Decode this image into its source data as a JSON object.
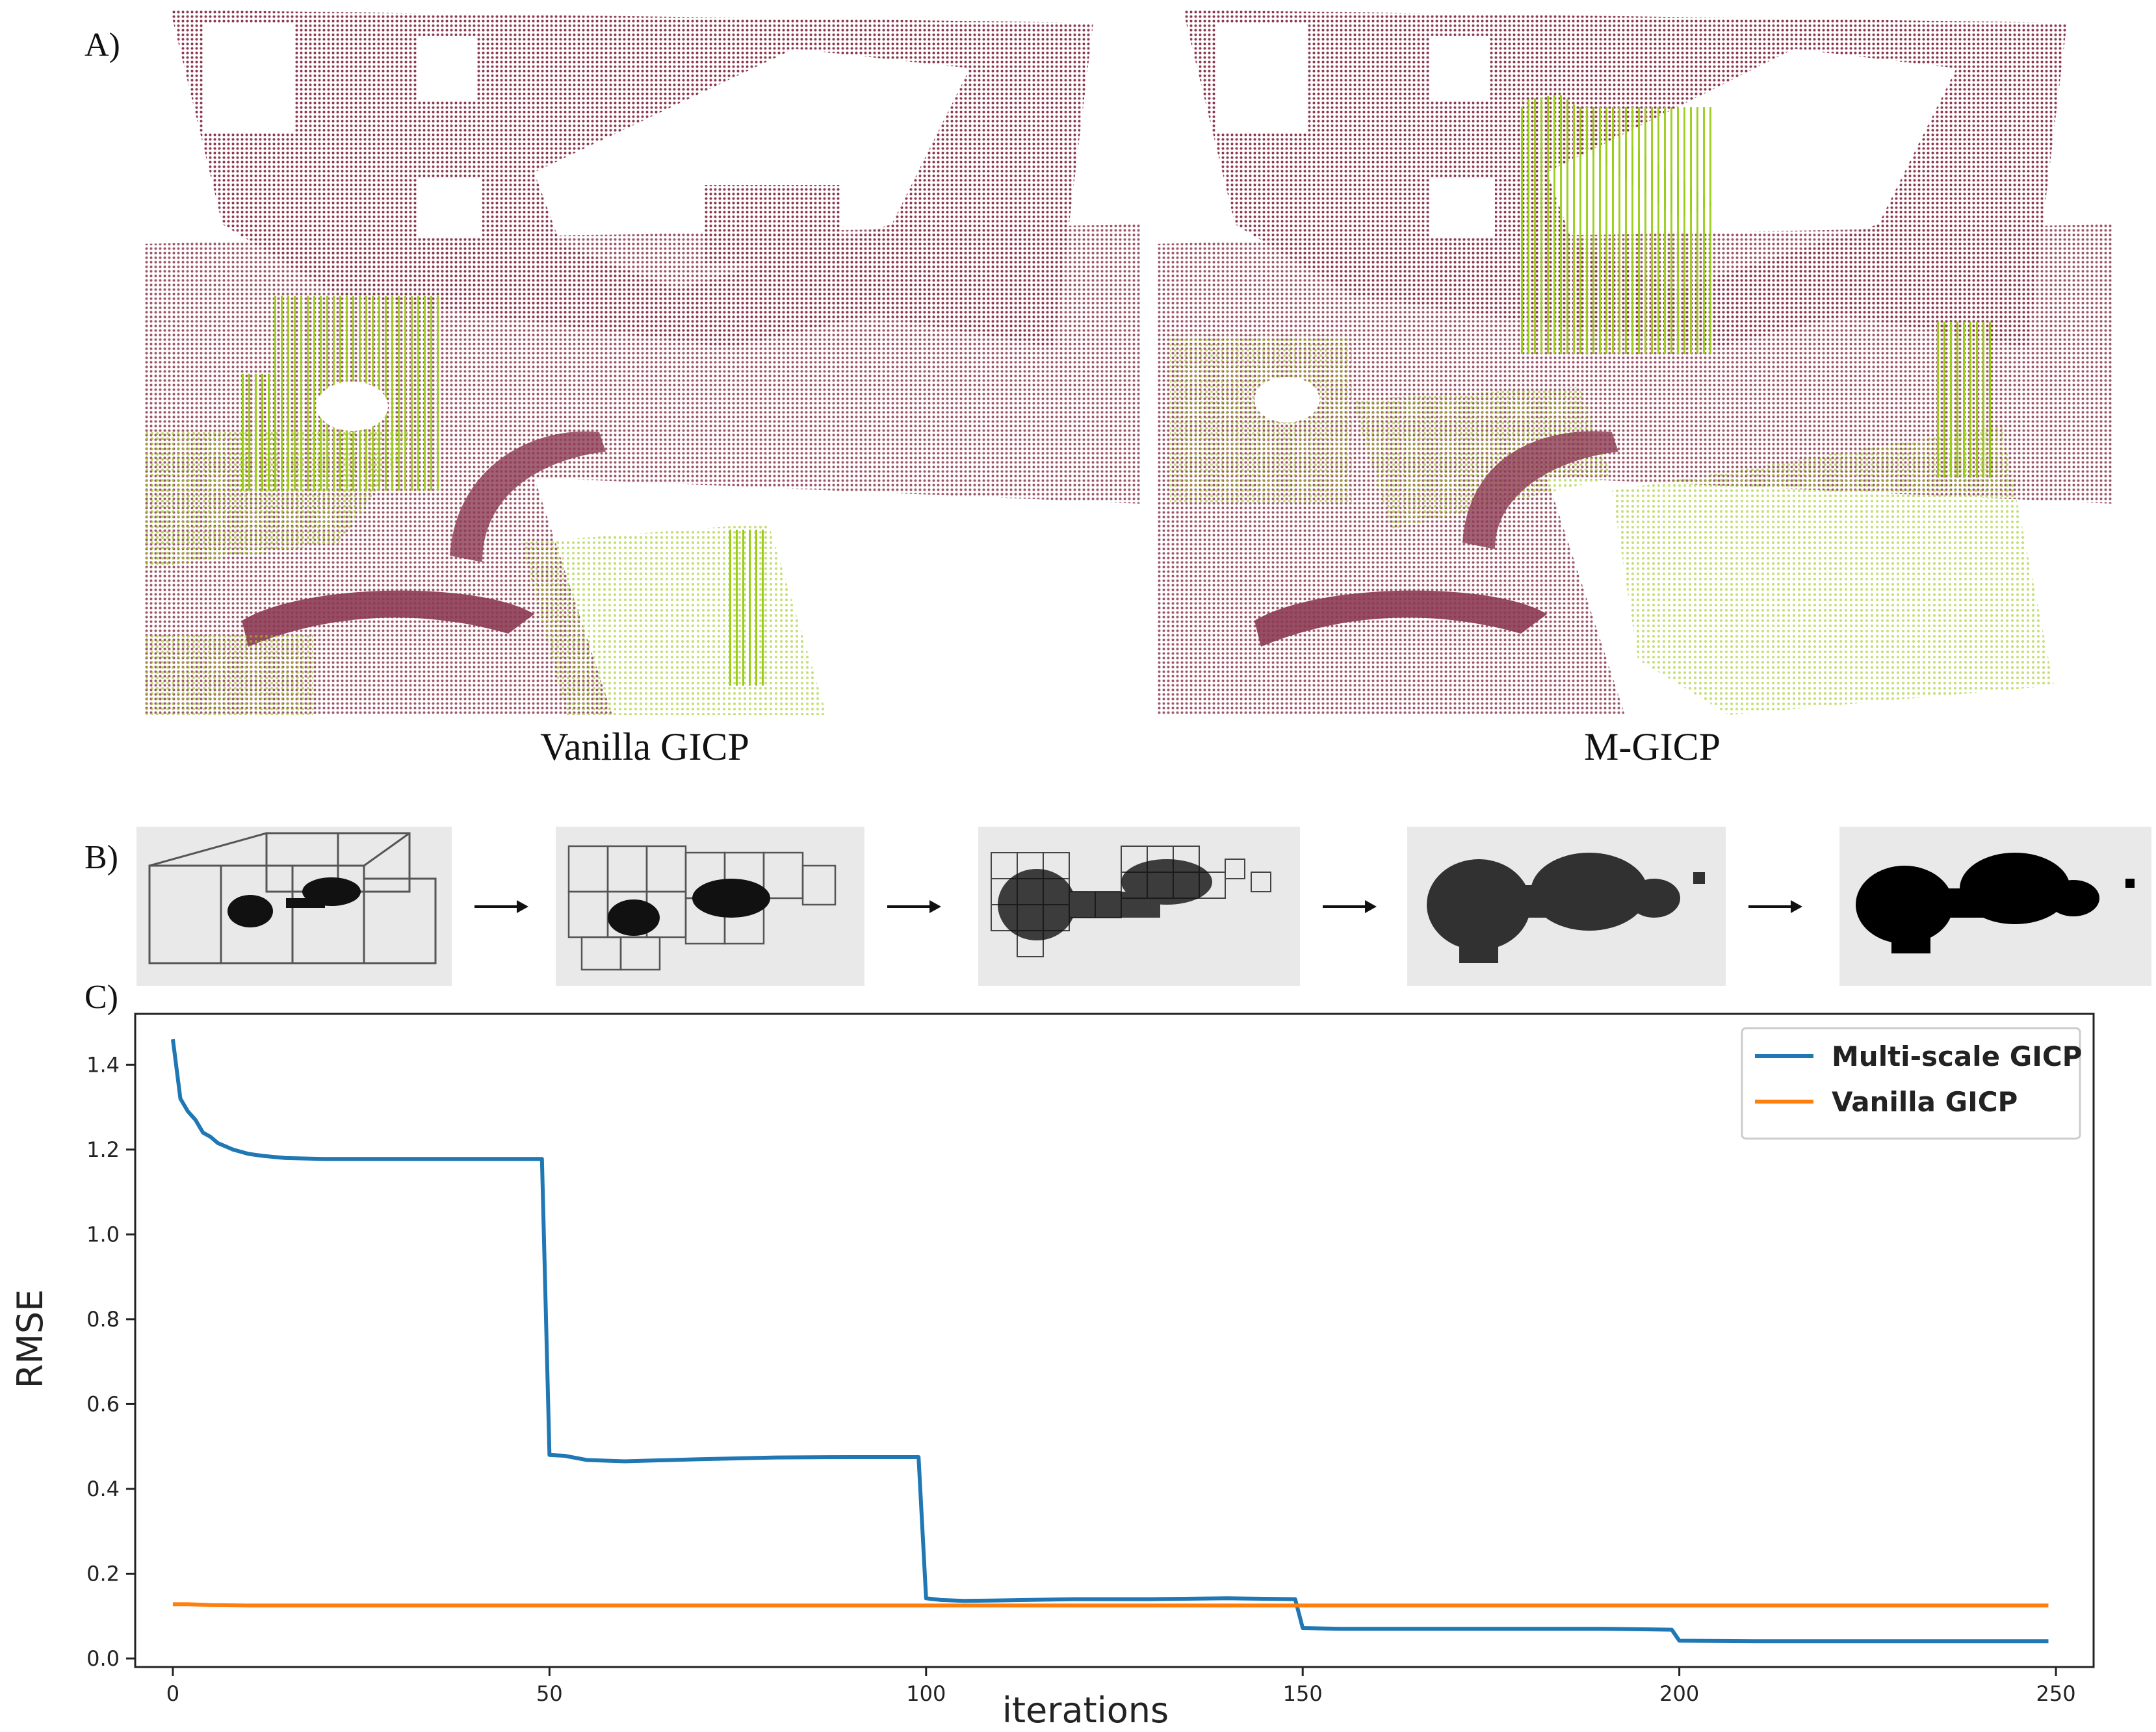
{
  "panels": {
    "a_label": "A)",
    "b_label": "B)",
    "c_label": "C)"
  },
  "panel_a": {
    "left_caption": "Vanilla GICP",
    "right_caption": "M-GICP",
    "colors": {
      "background_cloud": "#8c3a52",
      "aligned_cloud": "#9ccc1a"
    }
  },
  "panel_b": {
    "stages": 5,
    "colors": {
      "voxel_edges": "#555555",
      "points": "#111111"
    }
  },
  "chart_data": {
    "type": "line",
    "xlabel": "iterations",
    "ylabel": "RMSE",
    "xlim": [
      -5,
      255
    ],
    "ylim": [
      -0.02,
      1.52
    ],
    "xticks": [
      0,
      50,
      100,
      150,
      200,
      250
    ],
    "yticks": [
      0.0,
      0.2,
      0.4,
      0.6,
      0.8,
      1.0,
      1.2,
      1.4
    ],
    "legend": "top-right",
    "grid": false,
    "series": [
      {
        "name": "Multi-scale GICP",
        "color": "#1f77b4",
        "x": [
          0,
          1,
          2,
          3,
          4,
          5,
          6,
          8,
          10,
          12,
          15,
          20,
          30,
          40,
          49,
          50,
          52,
          55,
          60,
          70,
          80,
          90,
          99,
          100,
          102,
          105,
          110,
          120,
          130,
          140,
          149,
          150,
          155,
          160,
          170,
          180,
          190,
          199,
          200,
          210,
          220,
          230,
          240,
          249
        ],
        "y": [
          1.46,
          1.32,
          1.29,
          1.27,
          1.24,
          1.23,
          1.215,
          1.2,
          1.19,
          1.185,
          1.18,
          1.178,
          1.178,
          1.178,
          1.178,
          0.48,
          0.478,
          0.468,
          0.465,
          0.47,
          0.474,
          0.475,
          0.475,
          0.142,
          0.138,
          0.136,
          0.137,
          0.14,
          0.14,
          0.142,
          0.14,
          0.072,
          0.07,
          0.07,
          0.07,
          0.07,
          0.07,
          0.068,
          0.042,
          0.041,
          0.041,
          0.041,
          0.041,
          0.041
        ]
      },
      {
        "name": "Vanilla GICP",
        "color": "#ff7f0e",
        "x": [
          0,
          2,
          5,
          10,
          20,
          50,
          100,
          150,
          200,
          249
        ],
        "y": [
          0.128,
          0.128,
          0.126,
          0.125,
          0.125,
          0.125,
          0.125,
          0.125,
          0.125,
          0.125
        ]
      }
    ]
  }
}
